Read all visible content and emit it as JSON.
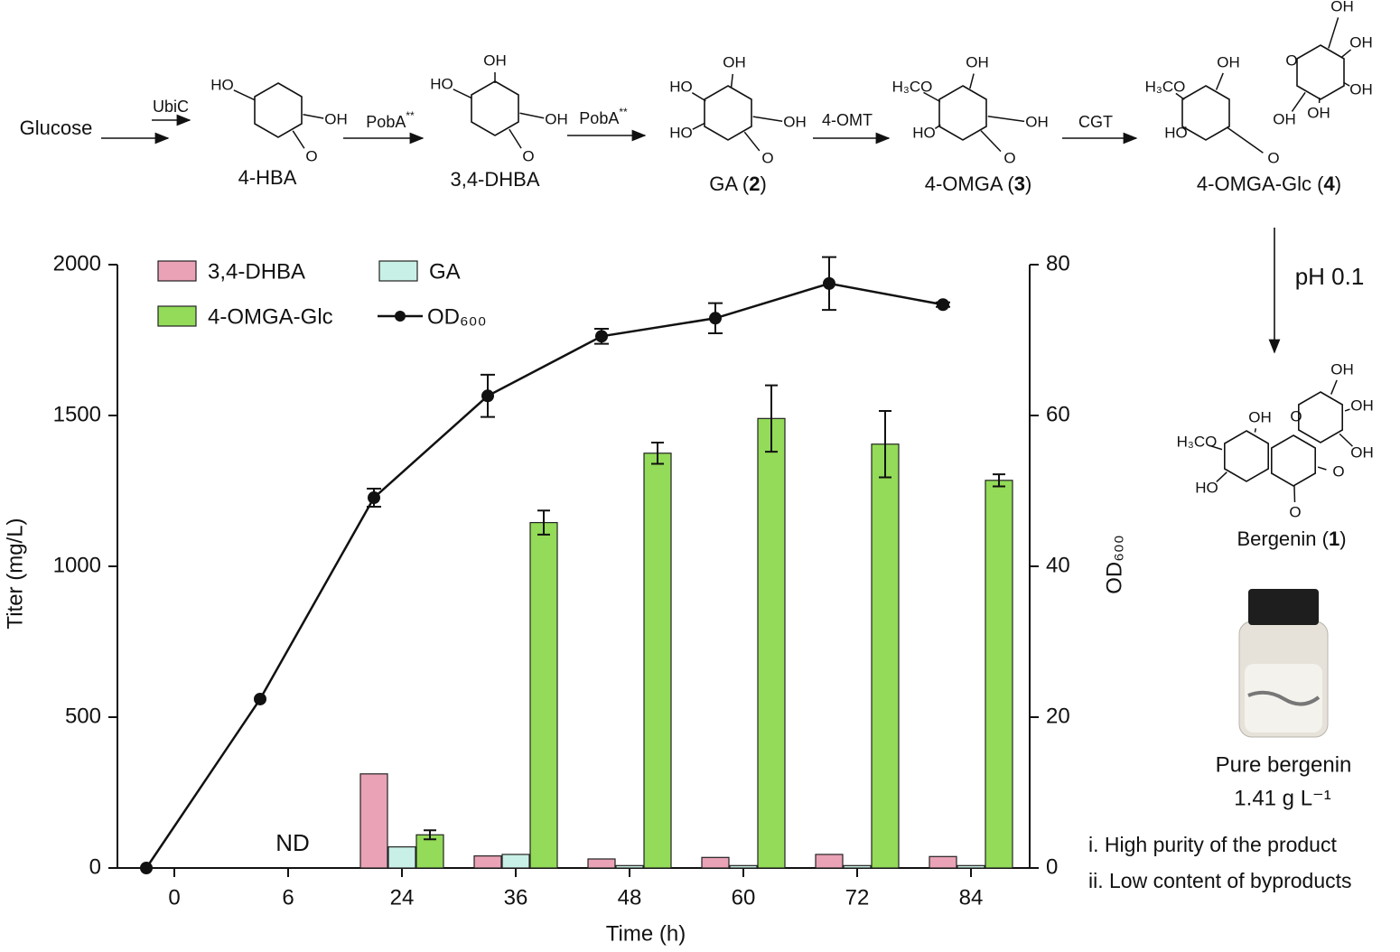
{
  "chart_data": {
    "type": "bar",
    "categories": [
      "0",
      "6",
      "24",
      "36",
      "48",
      "60",
      "72",
      "84"
    ],
    "xlabel": "Time (h)",
    "ylabel": "Titer (mg/L)",
    "y2label": "OD₆₀₀",
    "ylim": [
      0,
      2000
    ],
    "yticks": [
      0,
      500,
      1000,
      1500,
      2000
    ],
    "y2lim": [
      0,
      80
    ],
    "y2ticks": [
      0,
      20,
      40,
      60,
      80
    ],
    "series": [
      {
        "name": "3,4-DHBA",
        "color": "#e9a2b6",
        "values": [
          0,
          0,
          312,
          40,
          30,
          35,
          45,
          38
        ]
      },
      {
        "name": "GA",
        "color": "#c9f0e6",
        "values": [
          0,
          0,
          70,
          45,
          8,
          8,
          8,
          8
        ]
      },
      {
        "name": "4-OMGA-Glc",
        "color": "#93db58",
        "values": [
          0,
          0,
          110,
          1145,
          1375,
          1490,
          1405,
          1285
        ],
        "errors": [
          0,
          0,
          15,
          40,
          35,
          110,
          110,
          20
        ]
      },
      {
        "name": "OD₆₀₀",
        "color": "#111111",
        "type": "line",
        "axis": "y2",
        "values": [
          0,
          22.4,
          49.1,
          62.6,
          70.5,
          72.9,
          77.5,
          74.7
        ],
        "errors": [
          0,
          0,
          1.2,
          2.8,
          1,
          2,
          3.5,
          0.3
        ]
      }
    ],
    "annotations": [
      {
        "text": "ND",
        "x": "6"
      }
    ]
  },
  "scheme": {
    "start": "Glucose",
    "enzymes": [
      {
        "name": "UbiC"
      },
      {
        "name": "PobA",
        "sup": "**"
      },
      {
        "name": "PobA",
        "sup": "**"
      },
      {
        "name": "4-OMT"
      },
      {
        "name": "CGT"
      }
    ],
    "compounds": [
      {
        "label": [
          "4-HBA"
        ],
        "groups": [
          "HO",
          "OH",
          "O"
        ]
      },
      {
        "label": [
          "3,4-DHBA"
        ],
        "groups": [
          "OH",
          "HO",
          "OH",
          "O"
        ]
      },
      {
        "label": [
          "GA (",
          "2",
          ")"
        ],
        "groups": [
          "OH",
          "HO",
          "HO",
          "OH",
          "O"
        ]
      },
      {
        "label": [
          "4-OMGA (",
          "3",
          ")"
        ],
        "groups": [
          "OH",
          "H₃CO",
          "HO",
          "OH",
          "O"
        ]
      },
      {
        "label": [
          "4-OMGA-Glc (",
          "4",
          ")"
        ],
        "groups": [
          "OH",
          "H₃CO",
          "HO",
          "OH",
          "O",
          "O",
          "OH",
          "OH",
          "OH",
          "OH"
        ]
      }
    ],
    "condition": "pH 0.1",
    "product": {
      "label": [
        "Bergenin (",
        "1",
        ")"
      ],
      "groups": [
        "OH",
        "OH",
        "O",
        "OH",
        "H₃CO",
        "OH",
        "O",
        "HO",
        "O"
      ]
    },
    "photo_caption": "Pure bergenin",
    "titer": "1.41 g L⁻¹",
    "notes": [
      "i.  High purity of the product",
      "ii. Low content of byproducts"
    ]
  }
}
